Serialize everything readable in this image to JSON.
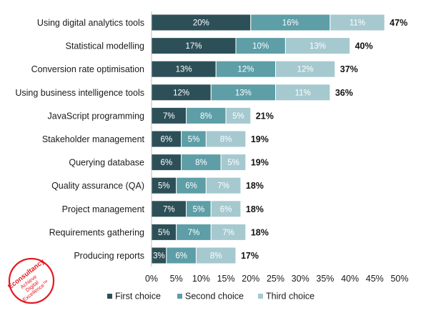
{
  "chart_data": {
    "type": "bar",
    "orientation": "horizontal",
    "stacked": true,
    "categories": [
      "Using digital analytics tools",
      "Statistical modelling",
      "Conversion rate optimisation",
      "Using business intelligence tools",
      "JavaScript programming",
      "Stakeholder management",
      "Querying database",
      "Quality assurance (QA)",
      "Project management",
      "Requirements gathering",
      "Producing reports"
    ],
    "series": [
      {
        "name": "First choice",
        "color": "#2d5058",
        "values": [
          20,
          17,
          13,
          12,
          7,
          6,
          6,
          5,
          7,
          5,
          3
        ]
      },
      {
        "name": "Second choice",
        "color": "#5d9ea7",
        "values": [
          16,
          10,
          12,
          13,
          8,
          5,
          8,
          6,
          5,
          7,
          6
        ]
      },
      {
        "name": "Third choice",
        "color": "#a5c9cf",
        "values": [
          11,
          13,
          12,
          11,
          5,
          8,
          5,
          7,
          6,
          7,
          8
        ]
      }
    ],
    "totals": [
      "47%",
      "40%",
      "37%",
      "36%",
      "21%",
      "19%",
      "19%",
      "18%",
      "18%",
      "18%",
      "17%"
    ],
    "xlim": [
      0,
      50
    ],
    "xticks": [
      "0%",
      "5%",
      "10%",
      "15%",
      "20%",
      "25%",
      "30%",
      "35%",
      "40%",
      "45%",
      "50%"
    ],
    "grid": false,
    "legend_position": "bottom"
  },
  "logo": {
    "brand": "Econsultancy",
    "tagline_lines": [
      "Achieve",
      "Digital",
      "Excellence™"
    ],
    "color": "#e31b23"
  }
}
